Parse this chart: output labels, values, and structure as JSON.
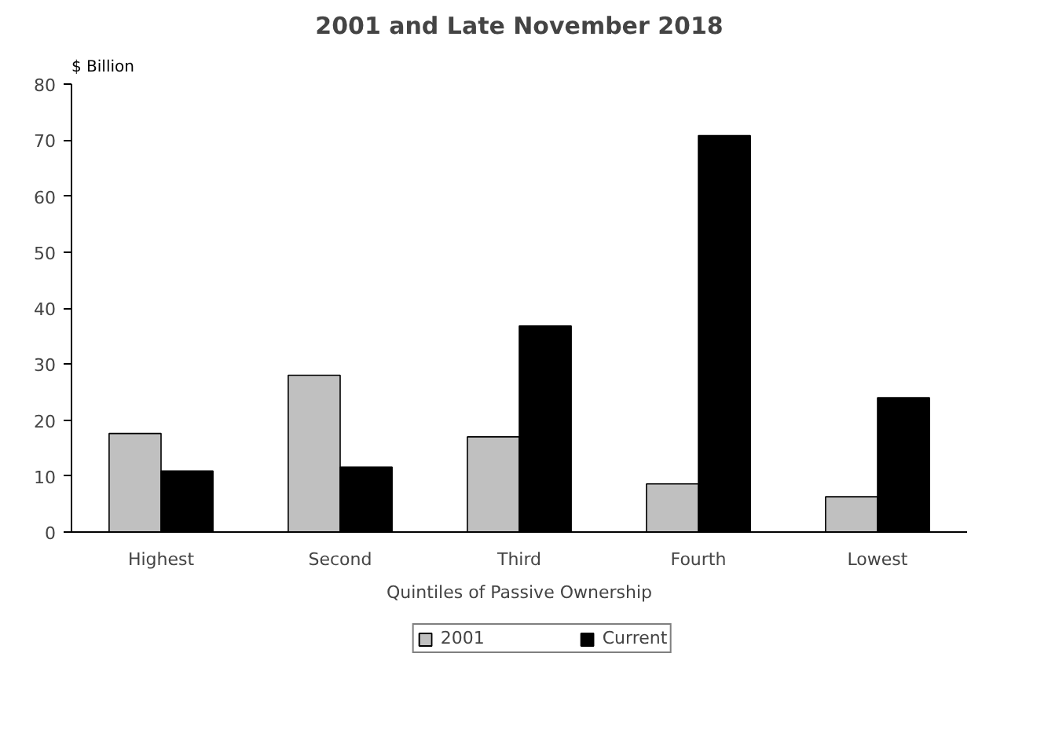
{
  "chart_data": {
    "type": "bar",
    "title": "2001 and Late November 2018",
    "ylabel": "$ Billion",
    "xlabel": "Quintiles of Passive Ownership",
    "categories": [
      "Highest",
      "Second",
      "Third",
      "Fourth",
      "Lowest"
    ],
    "series": [
      {
        "name": "2001",
        "color": "#c0c0c0",
        "values": [
          17.6,
          28.0,
          17.0,
          8.6,
          6.3
        ]
      },
      {
        "name": "Current",
        "color": "#000000",
        "values": [
          10.9,
          11.6,
          36.8,
          70.8,
          24.0
        ]
      }
    ],
    "ylim": [
      0,
      80
    ],
    "yticks": [
      0,
      10,
      20,
      30,
      40,
      50,
      60,
      70,
      80
    ],
    "grid": false,
    "legend": "bottom"
  }
}
